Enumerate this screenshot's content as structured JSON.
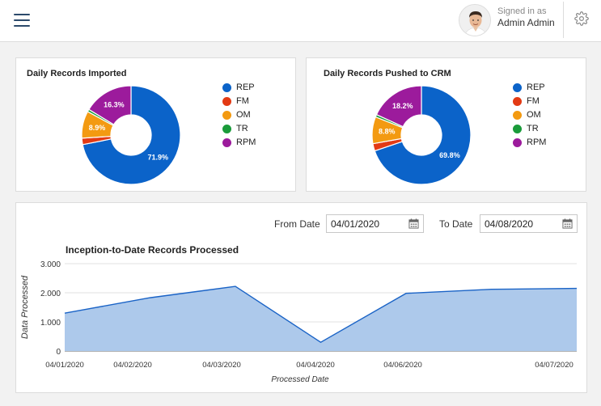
{
  "header": {
    "signed_in_label": "Signed in as",
    "user_name": "Admin Admin",
    "icons": [
      "hamburger-menu-icon",
      "user-avatar",
      "gear-icon"
    ]
  },
  "colors": {
    "REP": "#0b63c9",
    "FM": "#e33a14",
    "OM": "#f39a11",
    "TR": "#1a9b3a",
    "RPM": "#9c1b9c",
    "area_fill": "#adc9eb",
    "area_line": "#1a63c6"
  },
  "charts": {
    "imported": {
      "title": "Daily Records Imported",
      "legend": [
        "REP",
        "FM",
        "OM",
        "TR",
        "RPM"
      ]
    },
    "crm": {
      "title": "Daily Records Pushed to CRM",
      "legend": [
        "REP",
        "FM",
        "OM",
        "TR",
        "RPM"
      ]
    },
    "itd": {
      "title": "Inception-to-Date Records Processed"
    }
  },
  "filters": {
    "from_label": "From Date",
    "from_value": "04/01/2020",
    "to_label": "To Date",
    "to_value": "04/08/2020"
  },
  "chart_data": [
    {
      "type": "pie",
      "title": "Daily Records Imported",
      "labels": [
        "REP",
        "FM",
        "OM",
        "TR",
        "RPM"
      ],
      "values": [
        71.9,
        2.1,
        8.9,
        0.8,
        16.3
      ],
      "data_labels": [
        "71.9%",
        "",
        "8.9%",
        "",
        "16.3%"
      ]
    },
    {
      "type": "pie",
      "title": "Daily Records Pushed to CRM",
      "labels": [
        "REP",
        "FM",
        "OM",
        "TR",
        "RPM"
      ],
      "values": [
        69.8,
        2.4,
        8.8,
        0.8,
        18.2
      ],
      "data_labels": [
        "69.8%",
        "",
        "8.8%",
        "",
        "18.2%"
      ]
    },
    {
      "type": "area",
      "title": "Inception-to-Date Records Processed",
      "xlabel": "Processed Date",
      "ylabel": "Data Processed",
      "ylim": [
        0,
        3000
      ],
      "yticks": [
        "3.000",
        "2.000",
        "1.000",
        "0"
      ],
      "ytick_values": [
        3000,
        2000,
        1000,
        0
      ],
      "x_tick_labels": [
        "04/01/2020",
        "04/02/2020",
        "04/03/2020",
        "04/04/2020",
        "04/06/2020",
        "04/07/2020"
      ],
      "x": [
        0,
        1,
        2,
        3,
        4,
        5,
        6
      ],
      "values": [
        1300,
        1830,
        2220,
        300,
        1980,
        2120,
        2150
      ],
      "grid": true
    }
  ]
}
